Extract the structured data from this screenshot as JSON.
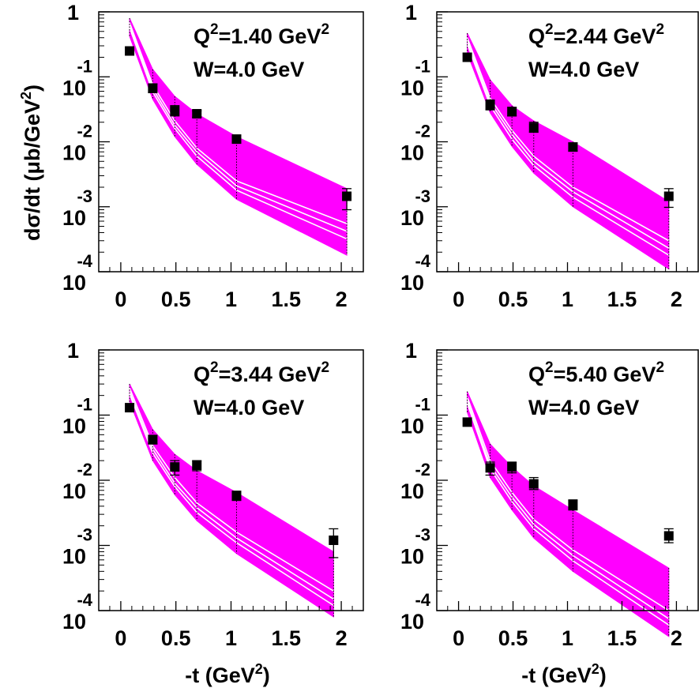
{
  "figure": {
    "ylabel": {
      "main": "dσ/dt (μb/GeV",
      "sup": "2",
      "close": ")"
    },
    "xlabel": {
      "main": "-t (GeV",
      "sup": "2",
      "close": ")"
    },
    "band_color": "#ff00ff",
    "point_color": "#000000"
  },
  "chart_data": [
    {
      "type": "scatter",
      "label_q2": {
        "main": "Q",
        "sup": "2",
        "rest": "=1.40 GeV",
        "sup2": "2"
      },
      "label_w": "W=4.0 GeV",
      "xlim": [
        -0.2,
        2.2
      ],
      "ylim": [
        0.0001,
        1
      ],
      "yscale": "log",
      "xticks": [
        "0",
        "0.5",
        "1",
        "1.5",
        "2"
      ],
      "xtick_values": [
        0,
        0.5,
        1,
        1.5,
        2
      ],
      "yticks": [
        {
          "base": "1",
          "exp": ""
        },
        {
          "base": "10",
          "exp": "-1"
        },
        {
          "base": "10",
          "exp": "-2"
        },
        {
          "base": "10",
          "exp": "-3"
        },
        {
          "base": "10",
          "exp": "-4"
        }
      ],
      "ytick_values": [
        1,
        0.1,
        0.01,
        0.001,
        0.0001
      ],
      "points": [
        {
          "x": 0.08,
          "y": 0.25,
          "ylo": 0.25,
          "yhi": 0.25
        },
        {
          "x": 0.29,
          "y": 0.067,
          "ylo": 0.057,
          "yhi": 0.078
        },
        {
          "x": 0.49,
          "y": 0.03,
          "ylo": 0.025,
          "yhi": 0.036
        },
        {
          "x": 0.69,
          "y": 0.027,
          "ylo": 0.024,
          "yhi": 0.03
        },
        {
          "x": 1.05,
          "y": 0.011,
          "ylo": 0.0098,
          "yhi": 0.0125
        },
        {
          "x": 2.05,
          "y": 0.00145,
          "ylo": 0.0009,
          "yhi": 0.0019
        }
      ],
      "band": {
        "x": [
          0.08,
          0.29,
          0.49,
          0.69,
          1.05,
          2.05
        ],
        "upper": [
          0.8,
          0.13,
          0.05,
          0.027,
          0.012,
          0.0019
        ],
        "lower": [
          0.42,
          0.045,
          0.012,
          0.0045,
          0.0013,
          0.00018
        ],
        "inner": [
          [
            0.57,
            0.058,
            0.016,
            0.006,
            0.0018,
            0.00032
          ],
          [
            0.62,
            0.066,
            0.018,
            0.007,
            0.0021,
            0.00042
          ],
          [
            0.68,
            0.075,
            0.021,
            0.008,
            0.0025,
            0.00055
          ]
        ]
      }
    },
    {
      "type": "scatter",
      "label_q2": {
        "main": "Q",
        "sup": "2",
        "rest": "=2.44 GeV",
        "sup2": "2"
      },
      "label_w": "W=4.0 GeV",
      "xlim": [
        -0.2,
        2.2
      ],
      "ylim": [
        0.0001,
        1
      ],
      "yscale": "log",
      "xticks": [
        "0",
        "0.5",
        "1",
        "1.5",
        "2"
      ],
      "xtick_values": [
        0,
        0.5,
        1,
        1.5,
        2
      ],
      "yticks": [
        {
          "base": "1",
          "exp": ""
        },
        {
          "base": "10",
          "exp": "-1"
        },
        {
          "base": "10",
          "exp": "-2"
        },
        {
          "base": "10",
          "exp": "-3"
        },
        {
          "base": "10",
          "exp": "-4"
        }
      ],
      "ytick_values": [
        1,
        0.1,
        0.01,
        0.001,
        0.0001
      ],
      "points": [
        {
          "x": 0.08,
          "y": 0.2,
          "ylo": 0.2,
          "yhi": 0.2
        },
        {
          "x": 0.29,
          "y": 0.037,
          "ylo": 0.031,
          "yhi": 0.044
        },
        {
          "x": 0.49,
          "y": 0.029,
          "ylo": 0.025,
          "yhi": 0.034
        },
        {
          "x": 0.69,
          "y": 0.0165,
          "ylo": 0.014,
          "yhi": 0.02
        },
        {
          "x": 1.05,
          "y": 0.0083,
          "ylo": 0.0072,
          "yhi": 0.0096
        },
        {
          "x": 1.93,
          "y": 0.00145,
          "ylo": 0.00098,
          "yhi": 0.0019
        }
      ],
      "band": {
        "x": [
          0.08,
          0.29,
          0.49,
          0.69,
          1.05,
          1.93
        ],
        "upper": [
          0.47,
          0.09,
          0.036,
          0.021,
          0.01,
          0.0012
        ],
        "lower": [
          0.23,
          0.028,
          0.0085,
          0.0033,
          0.001,
          0.00011
        ],
        "inner": [
          [
            0.32,
            0.036,
            0.011,
            0.0043,
            0.0014,
            0.00018
          ],
          [
            0.36,
            0.041,
            0.013,
            0.005,
            0.0017,
            0.00023
          ],
          [
            0.4,
            0.047,
            0.015,
            0.006,
            0.002,
            0.0003
          ]
        ]
      }
    },
    {
      "type": "scatter",
      "label_q2": {
        "main": "Q",
        "sup": "2",
        "rest": "=3.44 GeV",
        "sup2": "2"
      },
      "label_w": "W=4.0 GeV",
      "xlim": [
        -0.2,
        2.2
      ],
      "ylim": [
        0.0001,
        1
      ],
      "yscale": "log",
      "xticks": [
        "0",
        "0.5",
        "1",
        "1.5",
        "2"
      ],
      "xtick_values": [
        0,
        0.5,
        1,
        1.5,
        2
      ],
      "yticks": [
        {
          "base": "1",
          "exp": ""
        },
        {
          "base": "10",
          "exp": "-1"
        },
        {
          "base": "10",
          "exp": "-2"
        },
        {
          "base": "10",
          "exp": "-3"
        },
        {
          "base": "10",
          "exp": "-4"
        }
      ],
      "ytick_values": [
        1,
        0.1,
        0.01,
        0.001,
        0.0001
      ],
      "points": [
        {
          "x": 0.08,
          "y": 0.13,
          "ylo": 0.13,
          "yhi": 0.13
        },
        {
          "x": 0.29,
          "y": 0.042,
          "ylo": 0.036,
          "yhi": 0.049
        },
        {
          "x": 0.49,
          "y": 0.016,
          "ylo": 0.012,
          "yhi": 0.02
        },
        {
          "x": 0.69,
          "y": 0.017,
          "ylo": 0.014,
          "yhi": 0.02
        },
        {
          "x": 1.05,
          "y": 0.0058,
          "ylo": 0.0049,
          "yhi": 0.0068
        },
        {
          "x": 1.93,
          "y": 0.0012,
          "ylo": 0.00065,
          "yhi": 0.0018
        }
      ],
      "band": {
        "x": [
          0.08,
          0.29,
          0.49,
          0.69,
          1.05,
          1.93
        ],
        "upper": [
          0.3,
          0.06,
          0.025,
          0.014,
          0.0065,
          0.0008
        ],
        "lower": [
          0.16,
          0.02,
          0.006,
          0.0024,
          0.00075,
          8e-05
        ],
        "inner": [
          [
            0.21,
            0.026,
            0.008,
            0.0032,
            0.0011,
            0.00012
          ],
          [
            0.23,
            0.03,
            0.009,
            0.0038,
            0.0013,
            0.00015
          ],
          [
            0.26,
            0.034,
            0.011,
            0.0045,
            0.0016,
            0.0002
          ]
        ]
      }
    },
    {
      "type": "scatter",
      "label_q2": {
        "main": "Q",
        "sup": "2",
        "rest": "=5.40 GeV",
        "sup2": "2"
      },
      "label_w": "W=4.0 GeV",
      "xlim": [
        -0.2,
        2.2
      ],
      "ylim": [
        0.0001,
        1
      ],
      "yscale": "log",
      "xticks": [
        "0",
        "0.5",
        "1",
        "1.5",
        "2"
      ],
      "xtick_values": [
        0,
        0.5,
        1,
        1.5,
        2
      ],
      "yticks": [
        {
          "base": "1",
          "exp": ""
        },
        {
          "base": "10",
          "exp": "-1"
        },
        {
          "base": "10",
          "exp": "-2"
        },
        {
          "base": "10",
          "exp": "-3"
        },
        {
          "base": "10",
          "exp": "-4"
        }
      ],
      "ytick_values": [
        1,
        0.1,
        0.01,
        0.001,
        0.0001
      ],
      "points": [
        {
          "x": 0.08,
          "y": 0.078,
          "ylo": 0.078,
          "yhi": 0.078
        },
        {
          "x": 0.29,
          "y": 0.0155,
          "ylo": 0.012,
          "yhi": 0.019
        },
        {
          "x": 0.49,
          "y": 0.016,
          "ylo": 0.013,
          "yhi": 0.019
        },
        {
          "x": 0.69,
          "y": 0.0088,
          "ylo": 0.0072,
          "yhi": 0.011
        },
        {
          "x": 1.05,
          "y": 0.0042,
          "ylo": 0.0035,
          "yhi": 0.005
        },
        {
          "x": 1.93,
          "y": 0.0014,
          "ylo": 0.0011,
          "yhi": 0.0018
        }
      ],
      "band": {
        "x": [
          0.08,
          0.29,
          0.49,
          0.69,
          1.05,
          1.93
        ],
        "upper": [
          0.23,
          0.036,
          0.016,
          0.0082,
          0.0035,
          0.00045
        ],
        "lower": [
          0.11,
          0.011,
          0.0035,
          0.0013,
          0.0004,
          4e-05
        ],
        "inner": [
          [
            0.15,
            0.015,
            0.0047,
            0.0018,
            0.00058,
            6e-05
          ],
          [
            0.17,
            0.017,
            0.0055,
            0.0021,
            0.0007,
            7.5e-05
          ],
          [
            0.19,
            0.02,
            0.0065,
            0.0025,
            0.00085,
            0.0001
          ]
        ]
      }
    }
  ]
}
